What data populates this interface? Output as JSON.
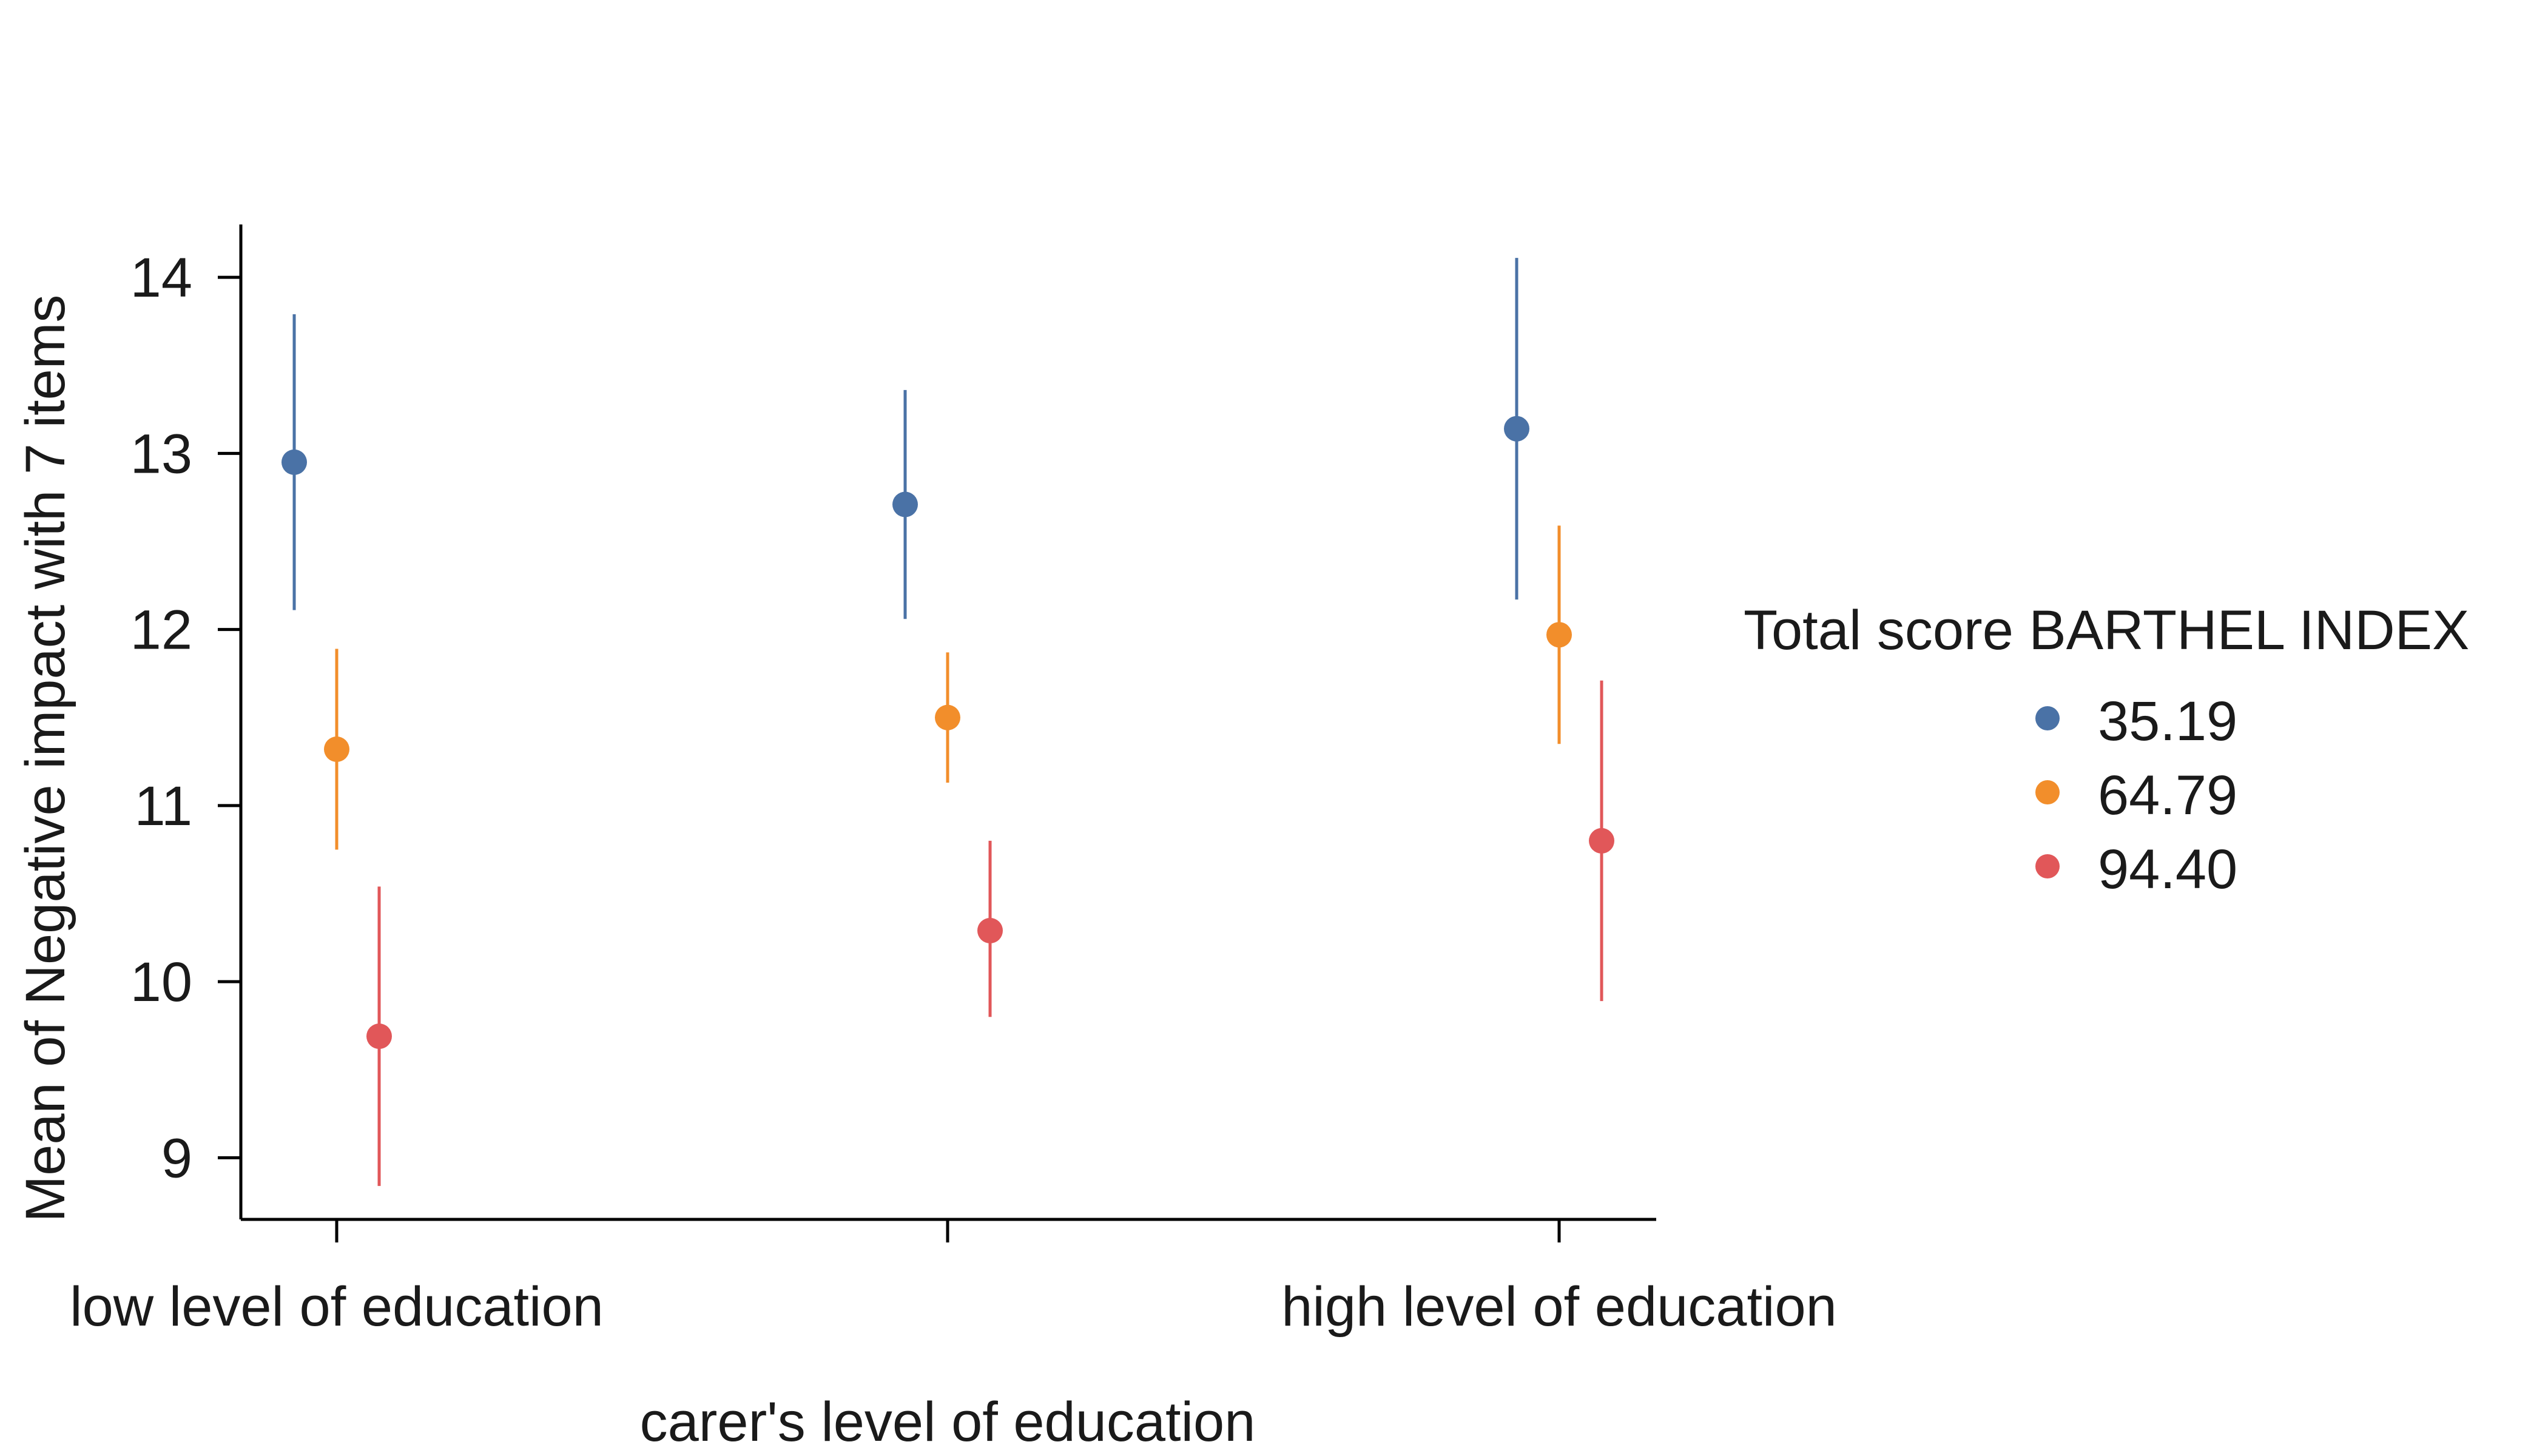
{
  "chart_data": {
    "type": "scatter",
    "subtype": "point-range",
    "title": "",
    "xlabel": "carer's level of education",
    "ylabel": "Mean of Negative impact with 7 items",
    "categories": [
      "low level of education",
      "",
      "high level of education"
    ],
    "ylim": [
      8.65,
      14.3
    ],
    "yticks": [
      9,
      10,
      11,
      12,
      13,
      14
    ],
    "grid": false,
    "legend": {
      "title": "Total score BARTHEL INDEX",
      "position": "right"
    },
    "series": [
      {
        "name": "35.19",
        "color": "#4a72a6",
        "values": [
          12.95,
          12.71,
          13.14
        ],
        "lower": [
          12.11,
          12.06,
          12.17
        ],
        "upper": [
          13.79,
          13.36,
          14.11
        ]
      },
      {
        "name": "64.79",
        "color": "#f28e2b",
        "values": [
          11.32,
          11.5,
          11.97
        ],
        "lower": [
          10.75,
          11.13,
          11.35
        ],
        "upper": [
          11.89,
          11.87,
          12.59
        ]
      },
      {
        "name": "94.40",
        "color": "#e15759",
        "values": [
          9.69,
          10.29,
          10.8
        ],
        "lower": [
          8.84,
          9.8,
          9.89
        ],
        "upper": [
          10.54,
          10.8,
          11.71
        ]
      }
    ]
  }
}
